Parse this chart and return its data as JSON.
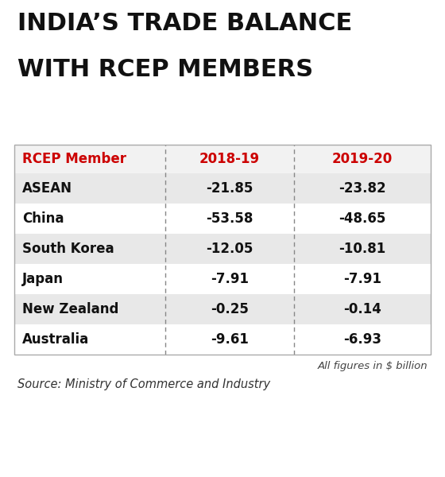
{
  "title_line1": "INDIA’S TRADE BALANCE",
  "title_line2": "WITH RCEP MEMBERS",
  "col_headers": [
    "RCEP Member",
    "2018-19",
    "2019-20"
  ],
  "rows": [
    [
      "ASEAN",
      "-21.85",
      "-23.82"
    ],
    [
      "China",
      "-53.58",
      "-48.65"
    ],
    [
      "South Korea",
      "-12.05",
      "-10.81"
    ],
    [
      "Japan",
      "-7.91",
      "-7.91"
    ],
    [
      "New Zealand",
      "-0.25",
      "-0.14"
    ],
    [
      "Australia",
      "-9.61",
      "-6.93"
    ]
  ],
  "shaded_rows": [
    0,
    2,
    4
  ],
  "header_color": "#cc0000",
  "title_color": "#111111",
  "row_bg_shaded": "#e8e8e8",
  "row_bg_plain": "#ffffff",
  "note": "All figures in $ billion",
  "source": "Source: Ministry of Commerce and Industry",
  "outer_bg": "#ffffff",
  "border_color": "#aaaaaa",
  "title_fontsize": 22,
  "header_fontsize": 12,
  "cell_fontsize": 12
}
